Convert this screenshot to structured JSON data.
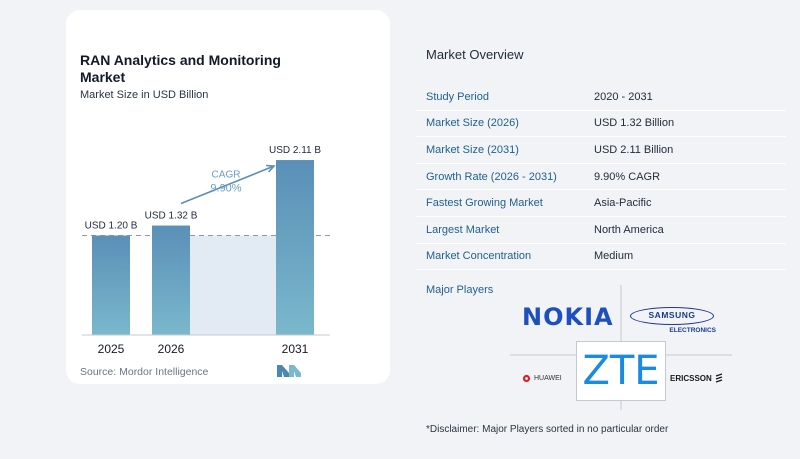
{
  "chart_data": {
    "type": "bar",
    "title": "RAN Analytics and Monitoring Market",
    "subtitle": "Market Size in USD Billion",
    "categories": [
      "2025",
      "2026",
      "2031"
    ],
    "values": [
      1.2,
      1.32,
      2.11
    ],
    "data_labels": [
      "USD 1.20 B",
      "USD 1.32 B",
      "USD 2.11 B"
    ],
    "cagr_label": "CAGR",
    "cagr_value": "9.90%",
    "ylim": [
      0,
      2.4
    ],
    "grid": false,
    "reference_line_at": 1.2
  },
  "source": "Source:  Mordor Intelligence",
  "overview": {
    "title": "Market Overview",
    "rows": [
      {
        "label": "Study Period",
        "value": "2020 - 2031"
      },
      {
        "label": "Market Size (2026)",
        "value": "USD 1.32 Billion"
      },
      {
        "label": "Market Size (2031)",
        "value": "USD 2.11 Billion"
      },
      {
        "label": "Growth Rate (2026 - 2031)",
        "value": "9.90% CAGR"
      },
      {
        "label": "Fastest Growing Market",
        "value": "Asia-Pacific"
      },
      {
        "label": "Largest Market",
        "value": "North America"
      },
      {
        "label": "Market Concentration",
        "value": "Medium"
      }
    ]
  },
  "players": {
    "title": "Major Players",
    "logos": {
      "nokia": "NOKIA",
      "samsung": "SAMSUNG",
      "samsung_sub": "ELECTRONICS",
      "zte": "ZTE",
      "huawei": "HUAWEI",
      "ericsson": "ERICSSON"
    }
  },
  "disclaimer": "*Disclaimer: Major Players sorted in no particular order",
  "colors": {
    "bar_top": "#5b8fb8",
    "bar_bottom": "#7ab8cc",
    "area": "#e2ebf3",
    "accent_blue": "#1f5f8f",
    "arrow": "#5b8fb8",
    "cagr_text": "#6b9cbf",
    "nokia": "#1d4fbf",
    "zte": "#1a8be0"
  }
}
